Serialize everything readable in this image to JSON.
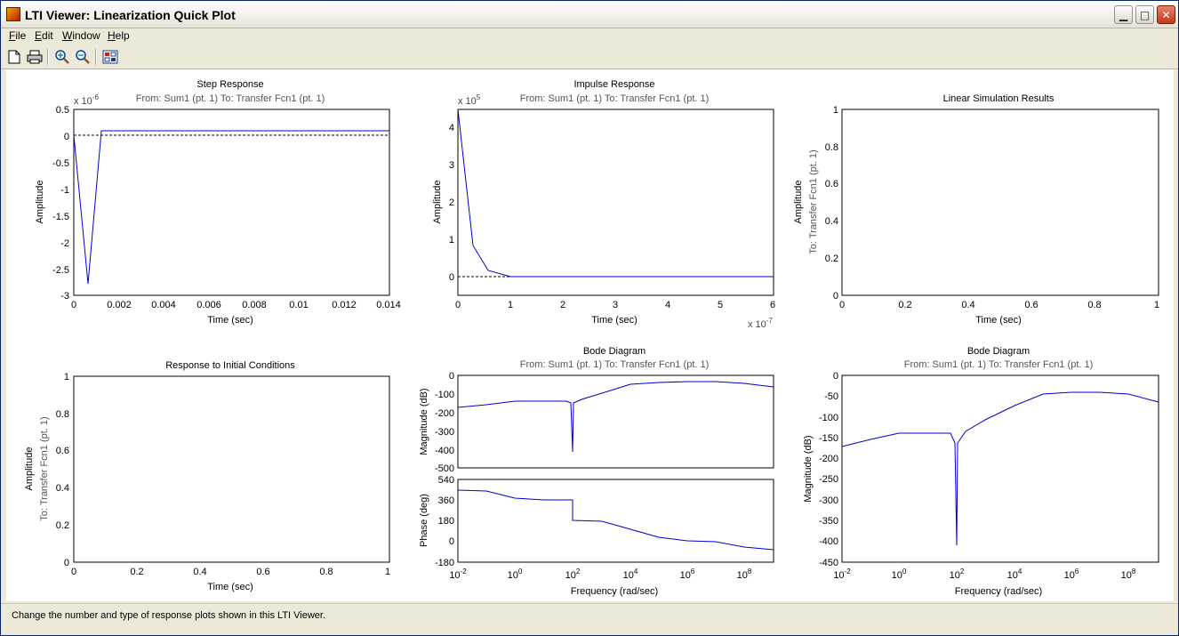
{
  "window": {
    "title": "LTI Viewer: Linearization Quick Plot"
  },
  "menu": [
    {
      "first": "F",
      "rest": "ile"
    },
    {
      "first": "E",
      "rest": "dit"
    },
    {
      "first": "W",
      "rest": "indow"
    },
    {
      "first": "H",
      "rest": "elp"
    }
  ],
  "toolbar": {
    "icons": [
      "new-document-icon",
      "print-icon",
      "zoom-in-icon",
      "zoom-out-icon",
      "plot-configuration-icon"
    ]
  },
  "status": {
    "text": "Change the number and type of response plots shown in this LTI Viewer."
  },
  "plots": {
    "step": {
      "title": "Step Response",
      "subtitle": "From: Sum1 (pt. 1)  To: Transfer Fcn1 (pt. 1)",
      "xlabel": "Time (sec)",
      "ylabel": "Amplitude",
      "exponent": "x 10",
      "exponent_power": "-6",
      "yticks": [
        "0.5",
        "0",
        "-0.5",
        "-1",
        "-1.5",
        "-2",
        "-2.5",
        "-3"
      ],
      "xticks": [
        "0",
        "0.002",
        "0.004",
        "0.006",
        "0.008",
        "0.01",
        "0.012",
        "0.014"
      ]
    },
    "impulse": {
      "title": "Impulse Response",
      "subtitle": "From: Sum1 (pt. 1)  To: Transfer Fcn1 (pt. 1)",
      "xlabel": "Time (sec)",
      "ylabel": "Amplitude",
      "y_exponent": "x 10",
      "y_exponent_power": "5",
      "x_exponent": "x 10",
      "x_exponent_power": "-7",
      "yticks": [
        "4",
        "3",
        "2",
        "1",
        "0"
      ],
      "xticks": [
        "0",
        "1",
        "2",
        "3",
        "4",
        "5",
        "6"
      ]
    },
    "linsim": {
      "title": "Linear Simulation Results",
      "xlabel": "Time (sec)",
      "ylabel": "Amplitude",
      "ylabel2": "To: Transfer Fcn1 (pt. 1)",
      "yticks": [
        "1",
        "0.8",
        "0.6",
        "0.4",
        "0.2",
        "0"
      ],
      "xticks": [
        "0",
        "0.2",
        "0.4",
        "0.6",
        "0.8",
        "1"
      ]
    },
    "initial": {
      "title": "Response to Initial Conditions",
      "xlabel": "Time (sec)",
      "ylabel": "Amplitude",
      "ylabel2": "To: Transfer Fcn1 (pt. 1)",
      "yticks": [
        "1",
        "0.8",
        "0.6",
        "0.4",
        "0.2",
        "0"
      ],
      "xticks": [
        "0",
        "0.2",
        "0.4",
        "0.6",
        "0.8",
        "1"
      ]
    },
    "bode1": {
      "title": "Bode Diagram",
      "subtitle": "From: Sum1 (pt. 1)  To: Transfer Fcn1 (pt. 1)",
      "mag_label": "Magnitude (dB)",
      "phase_label": "Phase (deg)",
      "xlabel": "Frequency  (rad/sec)",
      "mag_yticks": [
        "0",
        "-100",
        "-200",
        "-300",
        "-400",
        "-500"
      ],
      "phase_yticks": [
        "540",
        "360",
        "180",
        "0",
        "-180"
      ],
      "xtick_powers": [
        "-2",
        "0",
        "2",
        "4",
        "6",
        "8"
      ]
    },
    "bode2": {
      "title": "Bode Diagram",
      "subtitle": "From: Sum1 (pt. 1)  To: Transfer Fcn1 (pt. 1)",
      "mag_label": "Magnitude (dB)",
      "xlabel": "Frequency  (rad/sec)",
      "mag_yticks": [
        "0",
        "-50",
        "-100",
        "-150",
        "-200",
        "-250",
        "-300",
        "-350",
        "-400",
        "-450"
      ],
      "xtick_powers": [
        "-2",
        "0",
        "2",
        "4",
        "6",
        "8"
      ]
    }
  },
  "chart_data": [
    {
      "type": "line",
      "title": "Step Response",
      "xlabel": "Time (sec)",
      "ylabel": "Amplitude",
      "y_scale": "x 10^-6",
      "xlim": [
        0,
        0.014
      ],
      "ylim": [
        -3,
        0.5
      ],
      "series": [
        {
          "x": [
            0,
            0.0006,
            0.00125,
            0.014
          ],
          "y": [
            0,
            -2.75,
            0.1,
            0.1
          ]
        }
      ]
    },
    {
      "type": "line",
      "title": "Impulse Response",
      "xlabel": "Time (sec)",
      "ylabel": "Amplitude",
      "y_scale": "x 10^5",
      "x_scale": "x 10^-7",
      "xlim": [
        0,
        6
      ],
      "ylim": [
        -0.4,
        4.5
      ],
      "series": [
        {
          "x": [
            0,
            0.35,
            0.6,
            1.0,
            6.0
          ],
          "y": [
            4.5,
            0.85,
            0.15,
            0,
            0
          ]
        }
      ]
    },
    {
      "type": "line",
      "title": "Linear Simulation Results",
      "xlim": [
        0,
        1
      ],
      "ylim": [
        0,
        1
      ],
      "series": []
    },
    {
      "type": "line",
      "title": "Response to Initial Conditions",
      "xlim": [
        0,
        1
      ],
      "ylim": [
        0,
        1
      ],
      "series": []
    },
    {
      "type": "line",
      "title": "Bode Diagram",
      "xlabel": "Frequency  (rad/sec)",
      "x_scale": "log",
      "xlim_log10": [
        -2,
        9
      ],
      "magnitude": {
        "ylabel": "Magnitude (dB)",
        "ylim": [
          -500,
          0
        ],
        "log10_x": [
          -2,
          -1,
          0,
          1,
          1.8,
          1.95,
          2.0,
          2.05,
          2.3,
          3,
          4,
          5,
          6,
          7,
          8,
          9
        ],
        "y": [
          -172,
          -155,
          -140,
          -138,
          -138,
          -150,
          -410,
          -150,
          -130,
          -100,
          -50,
          -38,
          -35,
          -35,
          -45,
          -65
        ]
      },
      "phase": {
        "ylabel": "Phase (deg)",
        "ylim": [
          -180,
          540
        ],
        "log10_x": [
          -2,
          -1,
          0,
          1,
          2,
          2,
          3,
          4,
          5,
          6,
          7,
          8,
          9
        ],
        "y": [
          450,
          440,
          380,
          360,
          360,
          180,
          170,
          100,
          30,
          0,
          -10,
          -60,
          -80
        ]
      }
    },
    {
      "type": "line",
      "title": "Bode Diagram",
      "xlabel": "Frequency  (rad/sec)",
      "x_scale": "log",
      "xlim_log10": [
        -2,
        9
      ],
      "magnitude": {
        "ylabel": "Magnitude (dB)",
        "ylim": [
          -450,
          0
        ],
        "log10_x": [
          -2,
          -1,
          0,
          1,
          1.8,
          1.95,
          2.0,
          2.05,
          2.3,
          3,
          4,
          5,
          6,
          7,
          8,
          9
        ],
        "y": [
          -172,
          -155,
          -140,
          -138,
          -138,
          -160,
          -410,
          -160,
          -135,
          -100,
          -55,
          -42,
          -40,
          -40,
          -45,
          -65
        ]
      }
    }
  ]
}
